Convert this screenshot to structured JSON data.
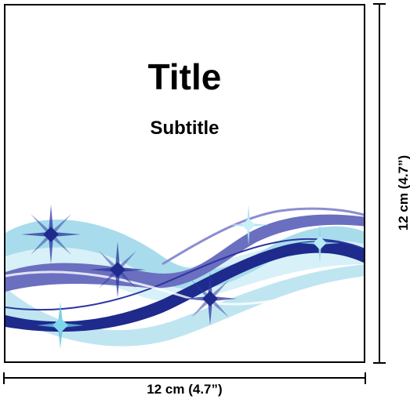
{
  "card": {
    "title": "Title",
    "subtitle": "Subtitle",
    "artwork": {
      "icon": "wave-swoosh-with-sparkles",
      "colors": {
        "light_blue": "#a8dcec",
        "pale_blue": "#d4eef6",
        "mid_blue": "#6b6fc0",
        "dark_blue": "#1e2a8c",
        "sparkle": "#7fd6ea"
      }
    }
  },
  "dimensions": {
    "width_label": "12 cm (4.7”)",
    "height_label": "12 cm (4.7”)"
  }
}
